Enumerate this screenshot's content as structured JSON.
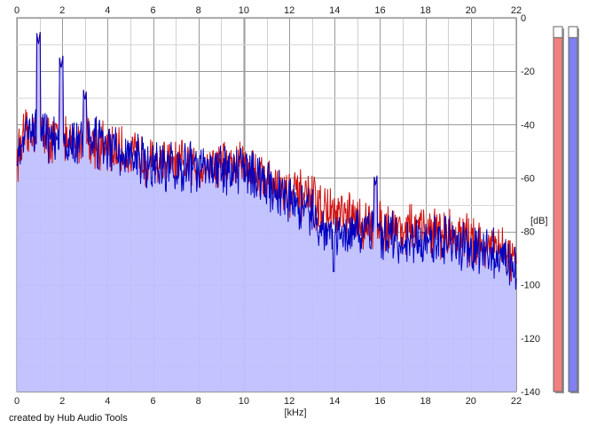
{
  "chart_data": {
    "type": "area",
    "xlabel": "[kHz]",
    "ylabel": "[dB]",
    "xlim": [
      0,
      22
    ],
    "ylim": [
      -140,
      0
    ],
    "x_ticks": [
      "0",
      "2",
      "4",
      "6",
      "8",
      "10",
      "12",
      "14",
      "16",
      "18",
      "20",
      "22"
    ],
    "y_ticks": [
      "0",
      "-20",
      "-40",
      "-60",
      "-80",
      "-100",
      "-120",
      "-140"
    ],
    "grid": true,
    "series": [
      {
        "color": "#d01010",
        "x": [
          0,
          0.25,
          0.5,
          0.75,
          1,
          1.25,
          1.5,
          1.75,
          2,
          2.5,
          3,
          3.5,
          4,
          4.5,
          5,
          5.5,
          6,
          6.5,
          7,
          7.5,
          8,
          8.5,
          9,
          9.5,
          10,
          10.5,
          11,
          11.5,
          12,
          12.5,
          13,
          13.5,
          14,
          14.5,
          15,
          15.5,
          16,
          16.5,
          17,
          17.5,
          18,
          18.5,
          19,
          19.5,
          20,
          20.5,
          21,
          21.5,
          22
        ],
        "values": [
          -52,
          -46,
          -44,
          -42,
          -40,
          -44,
          -46,
          -45,
          -47,
          -48,
          -44,
          -47,
          -50,
          -50,
          -52,
          -52,
          -55,
          -54,
          -56,
          -55,
          -56,
          -55,
          -54,
          -56,
          -54,
          -57,
          -61,
          -63,
          -66,
          -67,
          -69,
          -72,
          -74,
          -75,
          -76,
          -78,
          -78,
          -78,
          -79,
          -79,
          -80,
          -80,
          -81,
          -82,
          -83,
          -85,
          -86,
          -88,
          -93
        ]
      },
      {
        "color": "#0000c0",
        "x": [
          0,
          0.25,
          0.5,
          0.75,
          1,
          1.25,
          1.5,
          1.75,
          2,
          2.5,
          3,
          3.5,
          4,
          4.5,
          5,
          5.5,
          6,
          6.5,
          7,
          7.5,
          8,
          8.5,
          9,
          9.5,
          10,
          10.5,
          11,
          11.5,
          12,
          12.5,
          13,
          13.5,
          14,
          14.5,
          15,
          15.5,
          16,
          16.5,
          17,
          17.5,
          18,
          18.5,
          19,
          19.5,
          20,
          20.5,
          21,
          21.5,
          22
        ],
        "values": [
          -52,
          -45,
          -43,
          -41,
          -38,
          -42,
          -46,
          -44,
          -47,
          -48,
          -43,
          -47,
          -50,
          -50,
          -53,
          -53,
          -56,
          -55,
          -57,
          -56,
          -57,
          -56,
          -55,
          -57,
          -55,
          -58,
          -62,
          -65,
          -68,
          -71,
          -75,
          -79,
          -80,
          -81,
          -81,
          -82,
          -82,
          -82,
          -83,
          -83,
          -83,
          -83,
          -84,
          -85,
          -86,
          -88,
          -89,
          -91,
          -96
        ]
      }
    ],
    "peaks": [
      {
        "x": 0.95,
        "y": -10
      },
      {
        "x": 1.95,
        "y": -19
      },
      {
        "x": 3.0,
        "y": -31
      },
      {
        "x": 15.8,
        "y": -63
      },
      {
        "x": 13.95,
        "y": -95
      }
    ],
    "fill_color": "#c0c0ff",
    "level_meters": [
      {
        "name": "left",
        "color": "#f08080",
        "level": 0.97
      },
      {
        "name": "right",
        "color": "#8080f0",
        "level": 0.97
      }
    ],
    "footer": "created by Hub Audio Tools"
  }
}
